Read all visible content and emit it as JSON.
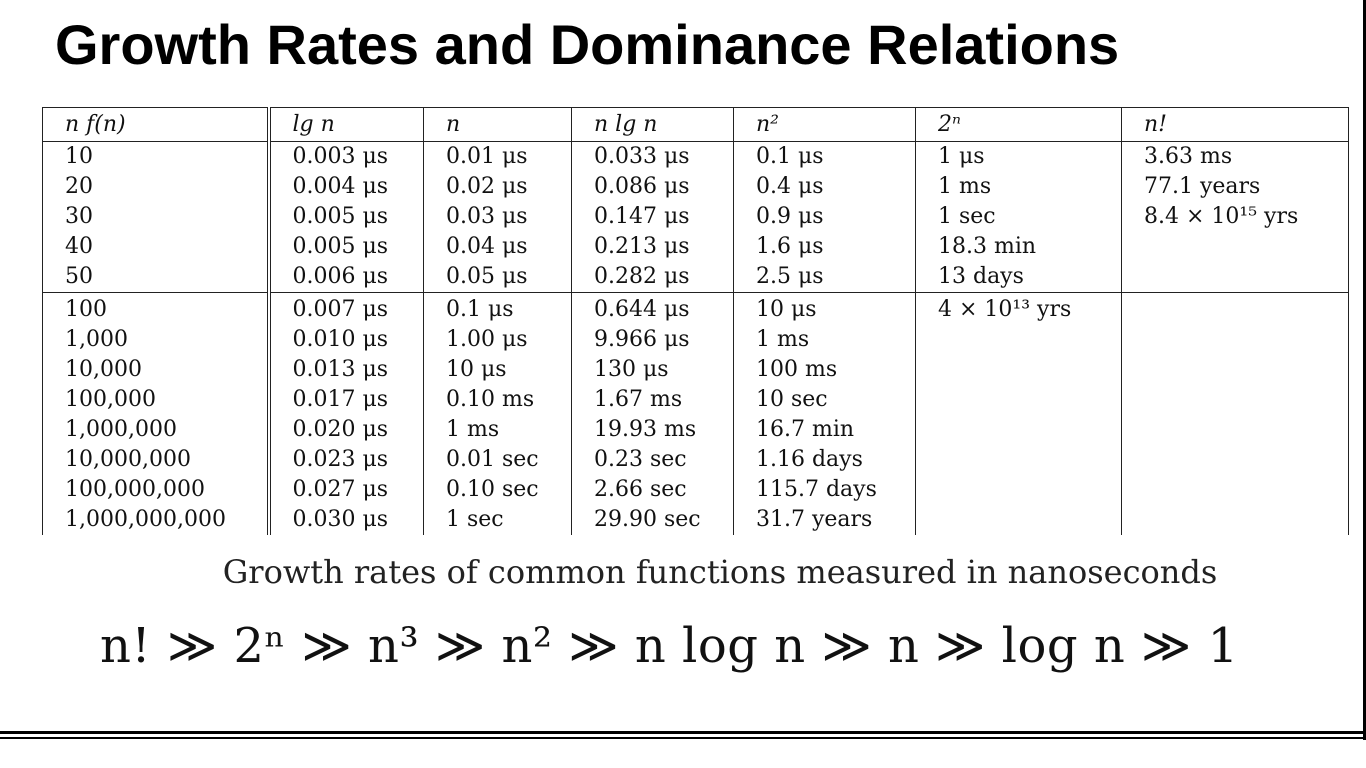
{
  "title": "Growth Rates and Dominance Relations",
  "table": {
    "headers": [
      "n   f(n)",
      "lg n",
      "n",
      "n lg n",
      "n²",
      "2ⁿ",
      "n!"
    ],
    "rows": [
      [
        "10",
        "0.003 μs",
        "0.01 μs",
        "0.033 μs",
        "0.1 μs",
        "1 μs",
        "3.63 ms"
      ],
      [
        "20",
        "0.004 μs",
        "0.02 μs",
        "0.086 μs",
        "0.4 μs",
        "1 ms",
        "77.1 years"
      ],
      [
        "30",
        "0.005 μs",
        "0.03 μs",
        "0.147 μs",
        "0.9 μs",
        "1 sec",
        "8.4 × 10¹⁵ yrs"
      ],
      [
        "40",
        "0.005 μs",
        "0.04 μs",
        "0.213 μs",
        "1.6 μs",
        "18.3 min",
        ""
      ],
      [
        "50",
        "0.006 μs",
        "0.05 μs",
        "0.282 μs",
        "2.5 μs",
        "13 days",
        ""
      ],
      [
        "100",
        "0.007 μs",
        "0.1 μs",
        "0.644 μs",
        "10 μs",
        "4 × 10¹³ yrs",
        ""
      ],
      [
        "1,000",
        "0.010 μs",
        "1.00 μs",
        "9.966 μs",
        "1 ms",
        "",
        ""
      ],
      [
        "10,000",
        "0.013 μs",
        "10 μs",
        "130 μs",
        "100 ms",
        "",
        ""
      ],
      [
        "100,000",
        "0.017 μs",
        "0.10 ms",
        "1.67 ms",
        "10 sec",
        "",
        ""
      ],
      [
        "1,000,000",
        "0.020 μs",
        "1 ms",
        "19.93 ms",
        "16.7 min",
        "",
        ""
      ],
      [
        "10,000,000",
        "0.023 μs",
        "0.01 sec",
        "0.23 sec",
        "1.16 days",
        "",
        ""
      ],
      [
        "100,000,000",
        "0.027 μs",
        "0.10 sec",
        "2.66 sec",
        "115.7 days",
        "",
        ""
      ],
      [
        "1,000,000,000",
        "0.030 μs",
        "1 sec",
        "29.90 sec",
        "31.7 years",
        "",
        ""
      ]
    ]
  },
  "caption": "Growth rates of common functions measured in nanoseconds",
  "dominance": "n! ≫ 2ⁿ ≫ n³ ≫ n² ≫ n log n ≫ n ≫ log n ≫ 1"
}
